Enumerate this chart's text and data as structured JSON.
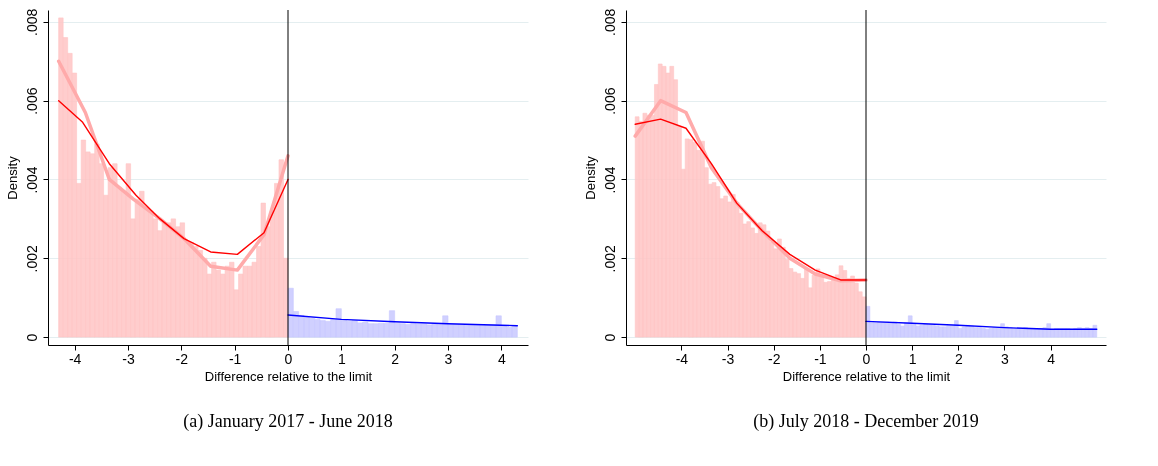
{
  "chart_data": [
    {
      "type": "histogram",
      "title": "(a) January 2017 - June 2018",
      "xlabel": "Difference relative to the limit",
      "ylabel": "Density",
      "xlim": [
        -4.5,
        4.5
      ],
      "xticks": [
        -4,
        -3,
        -2,
        -1,
        0,
        1,
        2,
        3,
        4
      ],
      "ylim": [
        -0.0002,
        0.0083
      ],
      "yticks": [
        0,
        {
          "value": 0.002,
          "label": ".002"
        },
        {
          "value": 0.004,
          "label": ".004"
        },
        {
          "value": 0.006,
          "label": ".006"
        },
        {
          "value": 0.008,
          "label": ".008"
        }
      ],
      "grid": "y",
      "ref_lines": [
        {
          "axis": "x",
          "value": 0,
          "color": "#000000"
        }
      ],
      "series": [
        {
          "type": "histogram",
          "color": "#ffc4c4",
          "bins": [
            -4.3,
            -4.216,
            -4.131,
            -4.047,
            -3.963,
            -3.878,
            -3.794,
            -3.71,
            -3.625,
            -3.541,
            -3.457,
            -3.373,
            -3.288,
            -3.204,
            -3.12,
            -3.035,
            -2.951,
            -2.867,
            -2.782,
            -2.698,
            -2.614,
            -2.529,
            -2.445,
            -2.361,
            -2.276,
            -2.192,
            -2.108,
            -2.024,
            -1.939,
            -1.855,
            -1.771,
            -1.686,
            -1.602,
            -1.518,
            -1.433,
            -1.349,
            -1.265,
            -1.18,
            -1.096,
            -1.012,
            -0.927,
            -0.843,
            -0.759,
            -0.675,
            -0.59,
            -0.506,
            -0.422,
            -0.337,
            -0.253,
            -0.169,
            -0.084,
            0
          ],
          "values": [
            0.0081,
            0.0076,
            0.0072,
            0.0067,
            0.0039,
            0.005,
            0.0047,
            0.00465,
            0.0049,
            0.0044,
            0.0036,
            0.0043,
            0.0044,
            0.0038,
            0.0037,
            0.0044,
            0.003,
            0.0035,
            0.0037,
            0.0033,
            0.0032,
            0.003,
            0.0027,
            0.0029,
            0.0029,
            0.003,
            0.0028,
            0.0029,
            0.0024,
            0.0024,
            0.0023,
            0.0022,
            0.002,
            0.0016,
            0.0019,
            0.0017,
            0.0016,
            0.0018,
            0.0019,
            0.0012,
            0.0016,
            0.0018,
            0.0018,
            0.0019,
            0.0023,
            0.0034,
            0.0028,
            0.0032,
            0.0039,
            0.0045,
            0.002
          ]
        },
        {
          "type": "histogram",
          "color": "#c8c8ff",
          "bins": [
            0,
            0.1,
            0.2,
            0.3,
            0.4,
            0.5,
            0.6,
            0.7,
            0.8,
            0.9,
            1,
            1.1,
            1.2,
            1.3,
            1.4,
            1.5,
            1.6,
            1.7,
            1.8,
            1.9,
            2,
            2.1,
            2.2,
            2.3,
            2.4,
            2.5,
            2.6,
            2.7,
            2.8,
            2.9,
            3,
            3.1,
            3.2,
            3.3,
            3.4,
            3.5,
            3.6,
            3.7,
            3.8,
            3.9,
            4,
            4.1,
            4.2,
            4.3
          ],
          "values": [
            0.00124,
            0.00065,
            0.00055,
            0.0005,
            0.00048,
            0.00045,
            0.00042,
            0.0004,
            0.00045,
            0.00072,
            0.00042,
            0.0004,
            0.00042,
            0.00036,
            0.00038,
            0.00034,
            0.00034,
            0.00035,
            0.00035,
            0.00067,
            0.00035,
            0.00034,
            0.00032,
            0.00034,
            0.00033,
            0.00033,
            0.00031,
            0.00033,
            0.00032,
            0.00054,
            0.00032,
            0.00032,
            0.00031,
            0.00032,
            0.00031,
            0.00032,
            0.0003,
            0.00031,
            0.00031,
            0.00054,
            0.00027,
            0.00025,
            0.00028
          ]
        },
        {
          "type": "line",
          "color": "#ffaaaa",
          "x": [
            -4.3,
            -3.8,
            -3.35,
            -2.9,
            -2.4,
            -1.95,
            -1.45,
            -0.95,
            -0.45,
            0
          ],
          "values": [
            0.007,
            0.0057,
            0.004,
            0.0035,
            0.003,
            0.0025,
            0.0018,
            0.0017,
            0.0026,
            0.0046
          ]
        },
        {
          "type": "line",
          "color": "#ff0000",
          "x": [
            -4.3,
            -3.85,
            -3.35,
            -2.85,
            -2.4,
            -1.95,
            -1.45,
            -0.95,
            -0.45,
            0
          ],
          "values": [
            0.006,
            0.00545,
            0.0044,
            0.0036,
            0.003,
            0.0025,
            0.00216,
            0.0021,
            0.00265,
            0.004
          ]
        },
        {
          "type": "line",
          "color": "#0000ff",
          "x": [
            0,
            1,
            2,
            3,
            4.3
          ],
          "values": [
            0.00056,
            0.00045,
            0.00039,
            0.00034,
            0.00029
          ]
        }
      ]
    },
    {
      "type": "histogram",
      "title": "(b) July 2018 - December 2019",
      "xlabel": "Difference relative to the limit",
      "ylabel": "Density",
      "xlim": [
        -5.2,
        5.2
      ],
      "xticks": [
        -4,
        -3,
        -2,
        -1,
        0,
        1,
        2,
        3,
        4
      ],
      "ylim": [
        -0.0002,
        0.0083
      ],
      "yticks": [
        0,
        {
          "value": 0.002,
          "label": ".002"
        },
        {
          "value": 0.004,
          "label": ".004"
        },
        {
          "value": 0.006,
          "label": ".006"
        },
        {
          "value": 0.008,
          "label": ".008"
        }
      ],
      "grid": "y",
      "ref_lines": [
        {
          "axis": "x",
          "value": 0,
          "color": "#000000"
        }
      ],
      "series": [
        {
          "type": "histogram",
          "color": "#ffc4c4",
          "bins": [
            -5,
            -4.917,
            -4.833,
            -4.75,
            -4.667,
            -4.583,
            -4.5,
            -4.417,
            -4.333,
            -4.25,
            -4.167,
            -4.083,
            -4,
            -3.917,
            -3.833,
            -3.75,
            -3.667,
            -3.583,
            -3.5,
            -3.417,
            -3.333,
            -3.25,
            -3.167,
            -3.083,
            -3,
            -2.917,
            -2.833,
            -2.75,
            -2.667,
            -2.583,
            -2.5,
            -2.417,
            -2.333,
            -2.25,
            -2.167,
            -2.083,
            -2,
            -1.917,
            -1.833,
            -1.75,
            -1.667,
            -1.583,
            -1.5,
            -1.417,
            -1.333,
            -1.25,
            -1.167,
            -1.083,
            -1,
            -0.917,
            -0.833,
            -0.75,
            -0.667,
            -0.583,
            -0.5,
            -0.417,
            -0.333,
            -0.25,
            -0.167,
            -0.083,
            0
          ],
          "values": [
            0.00559,
            0.00547,
            0.00568,
            0.00563,
            0.00563,
            0.00641,
            0.00693,
            0.00687,
            0.0067,
            0.00687,
            0.00653,
            0.00535,
            0.00426,
            0.00503,
            0.00501,
            0.00494,
            0.00474,
            0.00497,
            0.0043,
            0.00388,
            0.00392,
            0.00382,
            0.00351,
            0.00358,
            0.00343,
            0.00362,
            0.00342,
            0.00314,
            0.00287,
            0.00293,
            0.00277,
            0.00263,
            0.0029,
            0.00285,
            0.00269,
            0.00241,
            0.00224,
            0.00249,
            0.00228,
            0.00197,
            0.00174,
            0.00165,
            0.00161,
            0.00149,
            0.00174,
            0.00125,
            0.00157,
            0.00173,
            0.00158,
            0.00139,
            0.00141,
            0.00149,
            0.00158,
            0.00181,
            0.00169,
            0.00149,
            0.00155,
            0.00137,
            0.00115,
            0.00102
          ]
        },
        {
          "type": "histogram",
          "color": "#c8c8ff",
          "bins": [
            0,
            0.083,
            0.167,
            0.25,
            0.333,
            0.417,
            0.5,
            0.583,
            0.667,
            0.75,
            0.833,
            0.917,
            1,
            1.083,
            1.167,
            1.25,
            1.333,
            1.417,
            1.5,
            1.583,
            1.667,
            1.75,
            1.833,
            1.917,
            2,
            2.083,
            2.167,
            2.25,
            2.333,
            2.417,
            2.5,
            2.583,
            2.667,
            2.75,
            2.833,
            2.917,
            3,
            3.083,
            3.167,
            3.25,
            3.333,
            3.417,
            3.5,
            3.583,
            3.667,
            3.75,
            3.833,
            3.917,
            4,
            4.083,
            4.167,
            4.25,
            4.333,
            4.417,
            4.5,
            4.583,
            4.667,
            4.75,
            4.833,
            4.917,
            5
          ],
          "values": [
            0.00078,
            0.00036,
            0.00036,
            0.00038,
            0.00038,
            0.00038,
            0.00036,
            0.00038,
            0.00032,
            0.00028,
            0.00036,
            0.00054,
            0.00032,
            0.00028,
            0.0003,
            0.00032,
            0.00031,
            0.0003,
            0.00028,
            0.00026,
            0.00026,
            0.00028,
            0.00028,
            0.00042,
            0.00022,
            0.00026,
            0.0003,
            0.00028,
            0.00024,
            0.00024,
            0.00022,
            0.0002,
            0.00022,
            0.00024,
            0.00024,
            0.00034,
            0.00026,
            0.00024,
            0.00022,
            0.00022,
            0.0002,
            0.00024,
            0.00022,
            0.00022,
            0.0002,
            0.00022,
            0.00024,
            0.00034,
            0.00018,
            0.00022,
            0.00022,
            0.00022,
            0.00022,
            0.0002,
            0.00022,
            0.00024,
            0.00022,
            0.00024,
            0.00022,
            0.0003
          ]
        },
        {
          "type": "line",
          "color": "#ffaaaa",
          "x": [
            -5,
            -4.45,
            -3.9,
            -3.35,
            -2.8,
            -2.25,
            -1.65,
            -1.1,
            -0.55,
            0
          ],
          "values": [
            0.0051,
            0.006,
            0.0057,
            0.0043,
            0.0034,
            0.0027,
            0.002,
            0.0016,
            0.00143,
            0.00145
          ]
        },
        {
          "type": "line",
          "color": "#ff0000",
          "x": [
            -5,
            -4.45,
            -3.9,
            -3.35,
            -2.8,
            -2.25,
            -1.65,
            -1.1,
            -0.55,
            0
          ],
          "values": [
            0.0054,
            0.00553,
            0.0053,
            0.0044,
            0.0034,
            0.0027,
            0.0021,
            0.0017,
            0.00145,
            0.00145
          ]
        },
        {
          "type": "line",
          "color": "#0000ff",
          "x": [
            0,
            1,
            2,
            3,
            4,
            5
          ],
          "values": [
            0.0004,
            0.00035,
            0.0003,
            0.00024,
            0.0002,
            0.0002
          ]
        }
      ]
    }
  ]
}
